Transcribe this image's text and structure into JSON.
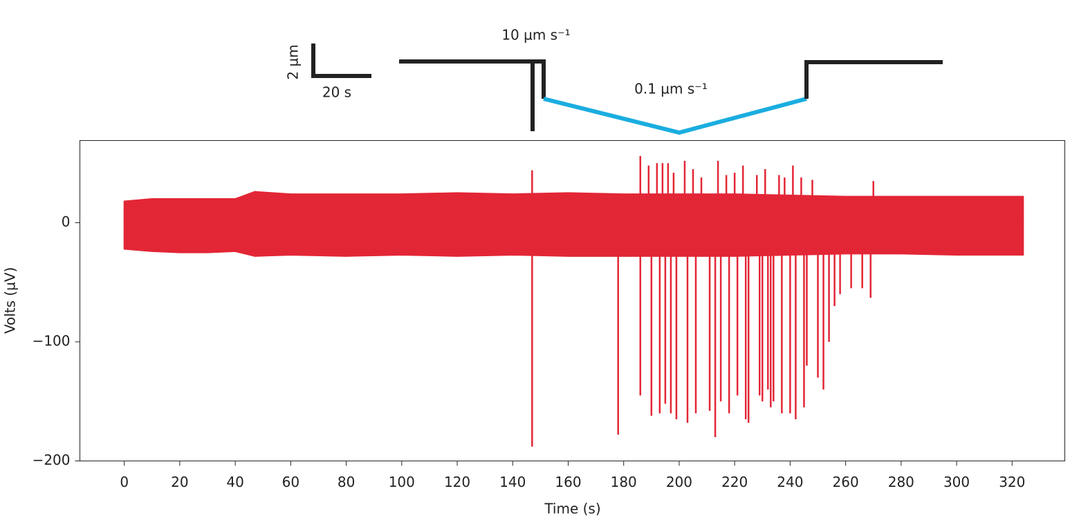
{
  "chart_data": {
    "type": "trace",
    "x_label": "Time (s)",
    "y_label": "Volts (µV)",
    "color": "#e32636",
    "protocol_color": "#1aade0",
    "scale_bar": {
      "x_label": "20 s",
      "y_label": "2 µm"
    },
    "annotations": [
      "10 µm s⁻¹",
      "0.1 µm s⁻¹"
    ],
    "xlim": [
      -16,
      339
    ],
    "ylim": [
      -200,
      69
    ],
    "xticks": [
      0,
      20,
      40,
      60,
      80,
      100,
      120,
      140,
      160,
      180,
      200,
      220,
      240,
      260,
      280,
      300,
      320
    ],
    "yticks": [
      0,
      {
        "value": -100,
        "label": "−100"
      },
      {
        "value": -200,
        "label": "−200"
      }
    ],
    "envelope": {
      "x": [
        0,
        10,
        20,
        30,
        40,
        47,
        60,
        80,
        100,
        120,
        140,
        160,
        180,
        200,
        220,
        240,
        260,
        280,
        300,
        320,
        324
      ],
      "upper": [
        18,
        20,
        20,
        20,
        20,
        26,
        24,
        24,
        24,
        25,
        24,
        25,
        24,
        24,
        24,
        23,
        22,
        22,
        22,
        22,
        22
      ],
      "lower": [
        -22,
        -24,
        -25,
        -25,
        -24,
        -28,
        -27,
        -28,
        -27,
        -28,
        -27,
        -28,
        -28,
        -28,
        -28,
        -27,
        -26,
        -26,
        -27,
        -27,
        -27
      ]
    },
    "spikes": {
      "x": [
        147,
        147,
        178,
        186,
        186,
        189,
        190,
        192,
        193,
        194,
        195,
        196,
        197,
        198,
        199,
        202,
        203,
        205,
        206,
        208,
        211,
        213,
        214,
        215,
        217,
        218,
        220,
        221,
        223,
        224,
        225,
        228,
        229,
        230,
        231,
        232,
        233,
        234,
        236,
        237,
        238,
        240,
        241,
        242,
        244,
        245,
        246,
        248,
        250,
        252,
        254,
        256,
        258,
        262,
        266,
        269,
        270
      ],
      "values": [
        44,
        -188,
        -178,
        56,
        -145,
        48,
        -162,
        50,
        -160,
        50,
        -152,
        50,
        -160,
        42,
        -165,
        52,
        -168,
        45,
        -160,
        38,
        -158,
        -180,
        52,
        -150,
        40,
        -160,
        42,
        -145,
        48,
        -165,
        -168,
        40,
        -145,
        -150,
        45,
        -140,
        -155,
        -150,
        40,
        -160,
        38,
        -160,
        48,
        -165,
        38,
        -155,
        -120,
        36,
        -130,
        -140,
        -100,
        -70,
        -60,
        -55,
        -55,
        -63,
        35
      ]
    }
  }
}
